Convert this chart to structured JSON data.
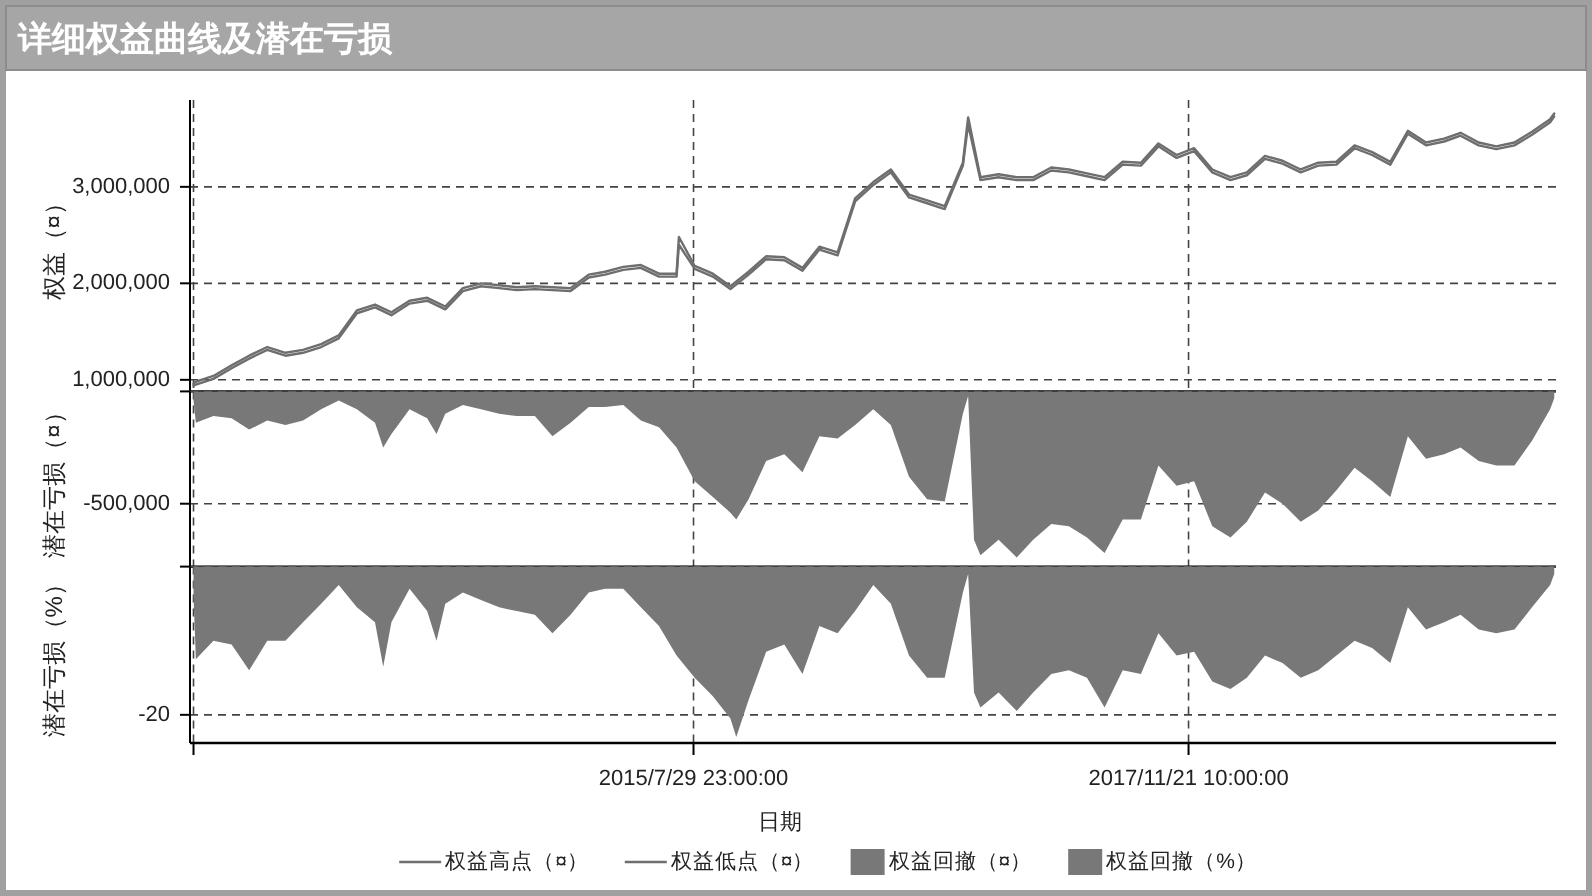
{
  "chart_data": [
    {
      "type": "line",
      "title": "详细权益曲线及潜在亏损",
      "ylabel": "权益（¤）",
      "grid": true,
      "legend": "bottom",
      "tick_labels": "y",
      "xlim": [
        "2013-03-22",
        "2019-08-11"
      ],
      "ylim": [
        880000,
        3900000
      ],
      "xticks": [
        {
          "value": "2013-03-28",
          "label": null
        },
        {
          "value": "2015-07-29T23:00",
          "label": null
        },
        {
          "value": "2017-11-21T10:00",
          "label": null
        }
      ],
      "yticks": [
        {
          "value": 1000000,
          "label": "1,000,000"
        },
        {
          "value": 2000000,
          "label": "2,000,000"
        },
        {
          "value": 3000000,
          "label": "3,000,000"
        }
      ],
      "x": [
        "2013-03-28",
        "2013-04-01",
        "2013-05-01",
        "2013-06-01",
        "2013-07-01",
        "2013-08-01",
        "2013-09-01",
        "2013-10-01",
        "2013-11-01",
        "2013-12-01",
        "2014-01-01",
        "2014-02-01",
        "2014-03-01",
        "2014-04-01",
        "2014-05-01",
        "2014-06-01",
        "2014-07-01",
        "2014-08-01",
        "2014-09-01",
        "2014-10-01",
        "2014-11-01",
        "2014-12-01",
        "2015-01-01",
        "2015-02-01",
        "2015-03-01",
        "2015-04-01",
        "2015-05-01",
        "2015-06-01",
        "2015-07-01",
        "2015-07-05",
        "2015-08-01",
        "2015-09-01",
        "2015-10-01",
        "2015-11-01",
        "2015-12-01",
        "2016-01-01",
        "2016-02-01",
        "2016-03-01",
        "2016-04-01",
        "2016-05-01",
        "2016-06-01",
        "2016-07-01",
        "2016-08-01",
        "2016-09-01",
        "2016-10-01",
        "2016-11-01",
        "2016-11-10",
        "2016-12-01",
        "2017-01-01",
        "2017-02-01",
        "2017-03-01",
        "2017-04-01",
        "2017-05-01",
        "2017-06-01",
        "2017-07-01",
        "2017-08-01",
        "2017-09-01",
        "2017-10-01",
        "2017-11-01",
        "2017-12-01",
        "2018-01-01",
        "2018-02-01",
        "2018-03-01",
        "2018-04-01",
        "2018-05-01",
        "2018-06-01",
        "2018-07-01",
        "2018-08-01",
        "2018-09-01",
        "2018-10-01",
        "2018-11-01",
        "2018-12-01",
        "2019-01-01",
        "2019-02-01",
        "2019-03-01",
        "2019-04-01",
        "2019-05-01",
        "2019-06-01",
        "2019-07-01",
        "2019-08-01",
        "2019-08-08"
      ],
      "series": [
        {
          "name": "权益高点（¤）",
          "color": "#6e6e6e",
          "values": [
            960000,
            980000,
            1040000,
            1150000,
            1250000,
            1340000,
            1280000,
            1310000,
            1370000,
            1460000,
            1720000,
            1780000,
            1700000,
            1820000,
            1850000,
            1760000,
            1950000,
            2000000,
            1980000,
            1960000,
            1970000,
            1960000,
            1950000,
            2090000,
            2120000,
            2170000,
            2190000,
            2100000,
            2100000,
            2480000,
            2180000,
            2100000,
            1970000,
            2120000,
            2280000,
            2270000,
            2160000,
            2380000,
            2320000,
            2880000,
            3050000,
            3180000,
            2920000,
            2860000,
            2800000,
            3250000,
            3720000,
            3100000,
            3130000,
            3100000,
            3100000,
            3200000,
            3180000,
            3140000,
            3100000,
            3260000,
            3250000,
            3450000,
            3330000,
            3400000,
            3180000,
            3100000,
            3150000,
            3320000,
            3270000,
            3180000,
            3250000,
            3260000,
            3430000,
            3360000,
            3260000,
            3580000,
            3460000,
            3500000,
            3560000,
            3460000,
            3420000,
            3460000,
            3570000,
            3700000,
            3760000
          ]
        },
        {
          "name": "权益低点（¤）",
          "color": "#6e6e6e",
          "values": [
            940000,
            950000,
            1010000,
            1120000,
            1220000,
            1310000,
            1250000,
            1280000,
            1340000,
            1430000,
            1690000,
            1750000,
            1670000,
            1790000,
            1820000,
            1730000,
            1920000,
            1970000,
            1950000,
            1930000,
            1940000,
            1930000,
            1920000,
            2060000,
            2090000,
            2140000,
            2160000,
            2070000,
            2070000,
            2400000,
            2150000,
            2070000,
            1940000,
            2090000,
            2250000,
            2240000,
            2130000,
            2350000,
            2290000,
            2850000,
            3020000,
            3150000,
            2890000,
            2830000,
            2770000,
            3220000,
            3650000,
            3070000,
            3100000,
            3070000,
            3070000,
            3170000,
            3150000,
            3110000,
            3070000,
            3230000,
            3220000,
            3420000,
            3300000,
            3370000,
            3150000,
            3070000,
            3120000,
            3290000,
            3240000,
            3150000,
            3220000,
            3230000,
            3400000,
            3330000,
            3230000,
            3550000,
            3430000,
            3470000,
            3530000,
            3430000,
            3390000,
            3430000,
            3540000,
            3670000,
            3730000
          ]
        }
      ]
    },
    {
      "type": "area",
      "ylabel": "潜在亏损（¤）",
      "grid": true,
      "legend": "bottom",
      "tick_labels": "y",
      "xlim": [
        "2013-03-22",
        "2019-08-11"
      ],
      "ylim": [
        -780000,
        0
      ],
      "xticks": [
        {
          "value": "2013-03-28",
          "label": null
        },
        {
          "value": "2015-07-29T23:00",
          "label": null
        },
        {
          "value": "2017-11-21T10:00",
          "label": null
        }
      ],
      "yticks": [
        {
          "value": -500000,
          "label": "-500,000"
        },
        {
          "value": 0,
          "label": null
        }
      ],
      "x": [
        "2013-03-28",
        "2013-04-01",
        "2013-05-01",
        "2013-06-01",
        "2013-07-01",
        "2013-08-01",
        "2013-09-01",
        "2013-10-01",
        "2013-11-01",
        "2013-12-01",
        "2014-01-01",
        "2014-02-01",
        "2014-02-15",
        "2014-03-01",
        "2014-04-01",
        "2014-05-01",
        "2014-05-17",
        "2014-06-01",
        "2014-07-01",
        "2014-08-01",
        "2014-09-01",
        "2014-10-01",
        "2014-11-01",
        "2014-12-01",
        "2015-01-01",
        "2015-02-01",
        "2015-03-01",
        "2015-04-01",
        "2015-05-01",
        "2015-06-01",
        "2015-07-01",
        "2015-08-01",
        "2015-09-01",
        "2015-10-01",
        "2015-10-11",
        "2015-11-01",
        "2015-12-01",
        "2016-01-01",
        "2016-02-01",
        "2016-03-01",
        "2016-04-01",
        "2016-05-01",
        "2016-06-01",
        "2016-07-01",
        "2016-08-01",
        "2016-09-01",
        "2016-10-01",
        "2016-11-01",
        "2016-11-10",
        "2016-11-20",
        "2016-12-01",
        "2017-01-01",
        "2017-02-01",
        "2017-03-01",
        "2017-04-01",
        "2017-05-01",
        "2017-06-01",
        "2017-07-01",
        "2017-08-01",
        "2017-09-01",
        "2017-10-01",
        "2017-11-01",
        "2017-12-01",
        "2018-01-01",
        "2018-02-01",
        "2018-03-01",
        "2018-04-01",
        "2018-05-01",
        "2018-06-01",
        "2018-07-01",
        "2018-08-01",
        "2018-09-01",
        "2018-10-01",
        "2018-11-01",
        "2018-12-01",
        "2019-01-01",
        "2019-02-01",
        "2019-03-01",
        "2019-04-01",
        "2019-05-01",
        "2019-06-01",
        "2019-07-01",
        "2019-08-01",
        "2019-08-08"
      ],
      "series": [
        {
          "name": "权益回撤（¤）",
          "color": "#787878",
          "values": [
            -40000,
            -140000,
            -110000,
            -120000,
            -170000,
            -130000,
            -150000,
            -130000,
            -80000,
            -40000,
            -80000,
            -140000,
            -250000,
            -190000,
            -80000,
            -120000,
            -190000,
            -100000,
            -60000,
            -80000,
            -100000,
            -110000,
            -110000,
            -200000,
            -140000,
            -70000,
            -70000,
            -60000,
            -130000,
            -160000,
            -250000,
            -400000,
            -470000,
            -540000,
            -570000,
            -480000,
            -310000,
            -280000,
            -360000,
            -200000,
            -210000,
            -150000,
            -80000,
            -150000,
            -380000,
            -480000,
            -490000,
            -100000,
            -20000,
            -660000,
            -730000,
            -660000,
            -740000,
            -660000,
            -590000,
            -600000,
            -650000,
            -720000,
            -570000,
            -570000,
            -330000,
            -420000,
            -400000,
            -600000,
            -650000,
            -580000,
            -450000,
            -500000,
            -580000,
            -530000,
            -440000,
            -340000,
            -400000,
            -470000,
            -200000,
            -300000,
            -280000,
            -250000,
            -310000,
            -330000,
            -330000,
            -220000,
            -80000,
            -30000
          ]
        }
      ]
    },
    {
      "type": "area",
      "ylabel": "潜在亏损（%）",
      "xlabel": "日期",
      "grid": true,
      "legend": "bottom",
      "xlim": [
        "2013-03-22",
        "2019-08-11"
      ],
      "ylim": [
        -23.8,
        0
      ],
      "xticks": [
        {
          "value": "2013-03-28",
          "label": null
        },
        {
          "value": "2015-07-29T23:00",
          "label": "2015/7/29 23:00:00"
        },
        {
          "value": "2017-11-21T10:00",
          "label": "2017/11/21 10:00:00"
        }
      ],
      "yticks": [
        -20,
        {
          "value": 0,
          "label": null
        }
      ],
      "x": [
        "2013-03-28",
        "2013-04-01",
        "2013-05-01",
        "2013-06-01",
        "2013-07-01",
        "2013-08-01",
        "2013-09-01",
        "2013-10-01",
        "2013-11-01",
        "2013-12-01",
        "2014-01-01",
        "2014-02-01",
        "2014-02-15",
        "2014-03-01",
        "2014-04-01",
        "2014-05-01",
        "2014-05-17",
        "2014-06-01",
        "2014-07-01",
        "2014-08-01",
        "2014-09-01",
        "2014-10-01",
        "2014-11-01",
        "2014-12-01",
        "2015-01-01",
        "2015-02-01",
        "2015-03-01",
        "2015-04-01",
        "2015-05-01",
        "2015-06-01",
        "2015-07-01",
        "2015-08-01",
        "2015-09-01",
        "2015-10-01",
        "2015-10-11",
        "2015-11-01",
        "2015-12-01",
        "2016-01-01",
        "2016-02-01",
        "2016-03-01",
        "2016-04-01",
        "2016-05-01",
        "2016-06-01",
        "2016-07-01",
        "2016-08-01",
        "2016-09-01",
        "2016-10-01",
        "2016-11-01",
        "2016-11-10",
        "2016-11-20",
        "2016-12-01",
        "2017-01-01",
        "2017-02-01",
        "2017-03-01",
        "2017-04-01",
        "2017-05-01",
        "2017-06-01",
        "2017-07-01",
        "2017-08-01",
        "2017-09-01",
        "2017-10-01",
        "2017-11-01",
        "2017-12-01",
        "2018-01-01",
        "2018-02-01",
        "2018-03-01",
        "2018-04-01",
        "2018-05-01",
        "2018-06-01",
        "2018-07-01",
        "2018-08-01",
        "2018-09-01",
        "2018-10-01",
        "2018-11-01",
        "2018-12-01",
        "2019-01-01",
        "2019-02-01",
        "2019-03-01",
        "2019-04-01",
        "2019-05-01",
        "2019-06-01",
        "2019-07-01",
        "2019-08-01",
        "2019-08-08"
      ],
      "series": [
        {
          "name": "权益回撤（%）",
          "color": "#787878",
          "values": [
            -4,
            -12.5,
            -10,
            -10.5,
            -14,
            -10,
            -10,
            -7.5,
            -5,
            -2.5,
            -5.5,
            -7.5,
            -13.5,
            -7.5,
            -3,
            -6,
            -10,
            -5,
            -3.5,
            -4.5,
            -5.5,
            -6,
            -6.5,
            -9,
            -6.5,
            -3.5,
            -3,
            -3,
            -5.5,
            -8,
            -12,
            -15,
            -17.5,
            -20.5,
            -23,
            -18,
            -11.5,
            -10.5,
            -14.5,
            -8,
            -9,
            -6,
            -2.5,
            -5,
            -12,
            -15,
            -15,
            -3.5,
            -1,
            -17,
            -19,
            -17,
            -19.5,
            -17,
            -14.5,
            -14,
            -15,
            -19,
            -14,
            -14.5,
            -9,
            -12,
            -11.5,
            -15.5,
            -16.5,
            -15,
            -12,
            -13,
            -15,
            -14,
            -12,
            -10,
            -11,
            -13,
            -5.5,
            -8.5,
            -7.5,
            -6.5,
            -8.5,
            -9,
            -8.5,
            -5.5,
            -2.5,
            -1
          ]
        }
      ]
    }
  ]
}
